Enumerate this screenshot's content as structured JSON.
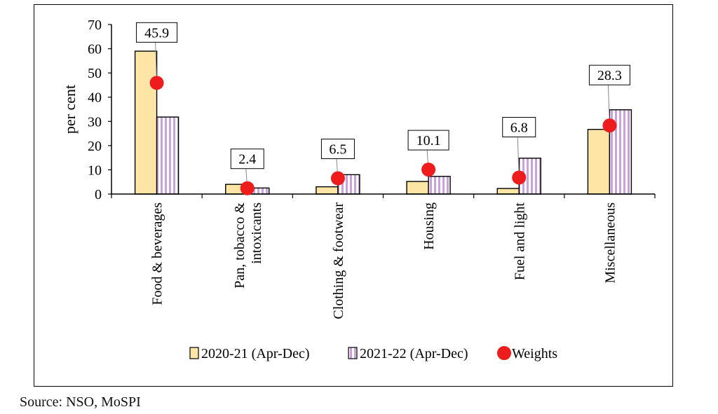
{
  "chart_data": {
    "type": "bar",
    "ylabel": "per cent",
    "ylim": [
      0,
      70
    ],
    "yticks": [
      0,
      10,
      20,
      30,
      40,
      50,
      60,
      70
    ],
    "categories": [
      "Food & beverages",
      "Pan, tobacco & intoxicants",
      "Clothing & footwear",
      "Housing",
      "Fuel and light",
      "Miscellaneous"
    ],
    "category_lines": [
      [
        "Food & beverages"
      ],
      [
        "Pan, tobacco &",
        "intoxicants"
      ],
      [
        "Clothing & footwear"
      ],
      [
        "Housing"
      ],
      [
        "Fuel and light"
      ],
      [
        "Miscellaneous"
      ]
    ],
    "series": [
      {
        "name": "2020-21 (Apr-Dec)",
        "values": [
          59,
          4,
          3,
          5.2,
          2.3,
          26.7
        ],
        "color": "#fde5a6",
        "pattern": "solid"
      },
      {
        "name": "2021-22 (Apr-Dec)",
        "values": [
          31.8,
          2.5,
          8,
          7.3,
          14.8,
          34.8
        ],
        "color": "#c9a2dc",
        "pattern": "vertical-stripes"
      }
    ],
    "weights": {
      "name": "Weights",
      "values": [
        45.9,
        2.4,
        6.5,
        10.1,
        6.8,
        28.3
      ],
      "labels": [
        "45.9",
        "2.4",
        "6.5",
        "10.1",
        "6.8",
        "28.3"
      ],
      "color": "#ee1c1c"
    },
    "legend_position": "bottom",
    "grid": false
  },
  "source": "Source: NSO, MoSPI"
}
